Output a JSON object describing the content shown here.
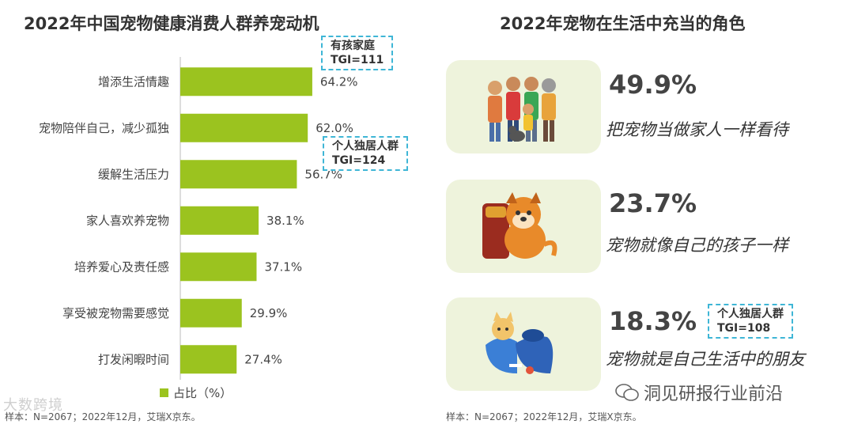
{
  "left_title": "2022年中国宠物健康消费人群养宠动机",
  "right_title": "2022年宠物在生活中充当的角色",
  "legend_label": "占比（%）",
  "left_note": "样本：N=2067；2022年12月，艾瑞X京东。",
  "right_note": "样本：N=2067；2022年12月，艾瑞X京东。",
  "watermark_right": "洞见研报行业前沿",
  "watermark_left": "大数跨境",
  "callouts": {
    "family": {
      "line1": "有孩家庭",
      "line2": "TGI=111"
    },
    "single1": {
      "line1": "个人独居人群",
      "line2": "TGI=124"
    },
    "single2": {
      "line1": "个人独居人群",
      "line2": "TGI=108"
    }
  },
  "roles": [
    {
      "pct": "49.9%",
      "desc": "把宠物当做家人一样看待",
      "icon": "family-icon"
    },
    {
      "pct": "23.7%",
      "desc": "宠物就像自己的孩子一样",
      "icon": "puppy-icon"
    },
    {
      "pct": "18.3%",
      "desc": "宠物就是自己生活中的朋友",
      "icon": "cat-bag-icon"
    }
  ],
  "colors": {
    "bar": "#9bc31f",
    "card": "#eef3dc",
    "callout_border": "#3fb6d6"
  },
  "chart_data": {
    "type": "bar",
    "orientation": "horizontal",
    "categories": [
      "增添生活情趣",
      "宠物陪伴自己，减少孤独",
      "缓解生活压力",
      "家人喜欢养宠物",
      "培养爱心及责任感",
      "享受被宠物需要感觉",
      "打发闲暇时间"
    ],
    "values": [
      64.2,
      62.0,
      56.7,
      38.1,
      37.1,
      29.9,
      27.4
    ],
    "value_labels": [
      "64.2%",
      "62.0%",
      "56.7%",
      "38.1%",
      "37.1%",
      "29.9%",
      "27.4%"
    ],
    "legend": [
      "占比（%）"
    ],
    "xlim": [
      0,
      100
    ]
  }
}
